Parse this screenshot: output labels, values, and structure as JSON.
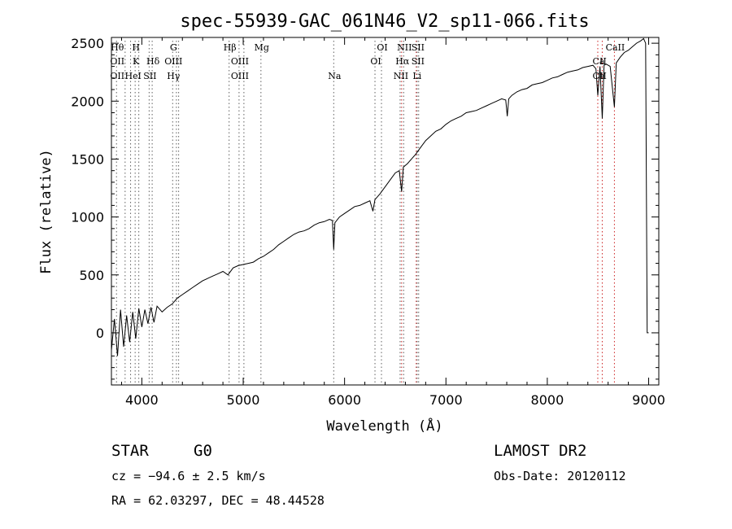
{
  "chart_data": {
    "type": "line",
    "title": "spec-55939-GAC_061N46_V2_sp11-066.fits",
    "xlabel": "Wavelength (Å)",
    "ylabel": "Flux (relative)",
    "xlim": [
      3700,
      9100
    ],
    "ylim": [
      -450,
      2550
    ],
    "xticks": [
      4000,
      5000,
      6000,
      7000,
      8000,
      9000
    ],
    "yticks": [
      0,
      500,
      1000,
      1500,
      2000,
      2500
    ],
    "series": [
      {
        "color": "#000000",
        "x": [
          3700,
          3730,
          3760,
          3790,
          3820,
          3850,
          3880,
          3910,
          3940,
          3970,
          4000,
          4030,
          4060,
          4090,
          4120,
          4150,
          4200,
          4250,
          4300,
          4350,
          4400,
          4450,
          4500,
          4550,
          4600,
          4650,
          4700,
          4750,
          4800,
          4850,
          4900,
          4950,
          5000,
          5050,
          5100,
          5150,
          5200,
          5250,
          5300,
          5350,
          5400,
          5450,
          5500,
          5550,
          5600,
          5650,
          5700,
          5750,
          5800,
          5850,
          5880,
          5893,
          5905,
          5950,
          6000,
          6050,
          6100,
          6150,
          6200,
          6250,
          6280,
          6300,
          6320,
          6350,
          6400,
          6450,
          6500,
          6540,
          6563,
          6580,
          6620,
          6660,
          6700,
          6750,
          6800,
          6850,
          6900,
          6950,
          7000,
          7050,
          7100,
          7150,
          7200,
          7250,
          7300,
          7350,
          7400,
          7450,
          7500,
          7550,
          7590,
          7605,
          7620,
          7650,
          7700,
          7750,
          7800,
          7850,
          7900,
          7950,
          8000,
          8050,
          8100,
          8150,
          8200,
          8250,
          8300,
          8350,
          8400,
          8450,
          8480,
          8498,
          8520,
          8542,
          8560,
          8580,
          8620,
          8662,
          8680,
          8720,
          8760,
          8800,
          8840,
          8880,
          8920,
          8950,
          8970,
          8985,
          9000
        ],
        "y": [
          -150,
          120,
          -200,
          200,
          -120,
          150,
          -80,
          180,
          -50,
          210,
          50,
          200,
          80,
          220,
          90,
          230,
          180,
          220,
          250,
          300,
          330,
          360,
          390,
          420,
          450,
          470,
          490,
          510,
          530,
          500,
          560,
          580,
          590,
          600,
          610,
          640,
          660,
          690,
          720,
          760,
          790,
          820,
          850,
          870,
          880,
          900,
          930,
          950,
          960,
          980,
          970,
          720,
          950,
          1000,
          1030,
          1060,
          1090,
          1100,
          1120,
          1140,
          1050,
          1150,
          1170,
          1200,
          1260,
          1320,
          1380,
          1400,
          1220,
          1430,
          1460,
          1500,
          1540,
          1600,
          1660,
          1700,
          1740,
          1760,
          1800,
          1830,
          1850,
          1870,
          1900,
          1910,
          1920,
          1940,
          1960,
          1980,
          2000,
          2020,
          2010,
          1870,
          2020,
          2050,
          2080,
          2100,
          2110,
          2140,
          2150,
          2160,
          2180,
          2200,
          2210,
          2230,
          2250,
          2260,
          2270,
          2290,
          2300,
          2310,
          2280,
          2050,
          2300,
          1850,
          2310,
          2320,
          2300,
          1950,
          2330,
          2380,
          2420,
          2440,
          2470,
          2500,
          2520,
          2540,
          2500,
          0,
          0
        ]
      }
    ],
    "line_markers": [
      {
        "w": 3750,
        "labels": [
          "Hθ",
          "OII",
          "OII"
        ],
        "color": "#606060"
      },
      {
        "w": 3835,
        "labels": [],
        "color": "#606060"
      },
      {
        "w": 3889,
        "labels": [
          "",
          "",
          "He"
        ],
        "color": "#606060"
      },
      {
        "w": 3934,
        "labels": [
          "H",
          "K",
          ""
        ],
        "color": "#606060"
      },
      {
        "w": 3970,
        "labels": [
          "",
          "",
          "I"
        ],
        "color": "#606060"
      },
      {
        "w": 4072,
        "labels": [
          "",
          "",
          "SII"
        ],
        "color": "#606060"
      },
      {
        "w": 4102,
        "labels": [
          "",
          "Hδ",
          ""
        ],
        "color": "#606060"
      },
      {
        "w": 4304,
        "labels": [
          "G",
          "OIII",
          "Hγ"
        ],
        "color": "#606060"
      },
      {
        "w": 4341,
        "labels": [],
        "color": "#606060"
      },
      {
        "w": 4363,
        "labels": [],
        "color": "#606060"
      },
      {
        "w": 4861,
        "labels": [
          "Hβ",
          "",
          ""
        ],
        "color": "#606060"
      },
      {
        "w": 4959,
        "labels": [
          "",
          "OIII",
          "OIII"
        ],
        "color": "#606060"
      },
      {
        "w": 5007,
        "labels": [],
        "color": "#606060"
      },
      {
        "w": 5175,
        "labels": [
          "Mg",
          "",
          ""
        ],
        "color": "#606060"
      },
      {
        "w": 5893,
        "labels": [
          "",
          "",
          "Na"
        ],
        "color": "#606060"
      },
      {
        "w": 6300,
        "labels": [
          "",
          "OI",
          ""
        ],
        "color": "#606060"
      },
      {
        "w": 6364,
        "labels": [
          "OI",
          "",
          ""
        ],
        "color": "#606060"
      },
      {
        "w": 6548,
        "labels": [
          "",
          "",
          "NII"
        ],
        "color": "#606060"
      },
      {
        "w": 6563,
        "labels": [
          "",
          "Hα",
          ""
        ],
        "color": "#cc2222"
      },
      {
        "w": 6583,
        "labels": [
          "NII",
          "",
          ""
        ],
        "color": "#606060"
      },
      {
        "w": 6707,
        "labels": [
          "",
          "",
          "Li"
        ],
        "color": "#cc2222"
      },
      {
        "w": 6716,
        "labels": [
          "SII",
          "SII",
          ""
        ],
        "color": "#606060"
      },
      {
        "w": 6731,
        "labels": [],
        "color": "#606060"
      },
      {
        "w": 8498,
        "labels": [
          "",
          "Ca",
          "Ca"
        ],
        "color": "#cc2222"
      },
      {
        "w": 8542,
        "labels": [
          "",
          "II",
          "II"
        ],
        "color": "#cc2222"
      },
      {
        "w": 8662,
        "labels": [
          "CaII",
          "",
          ""
        ],
        "color": "#cc2222"
      }
    ]
  },
  "info": {
    "class": "STAR",
    "subclass": "G0",
    "survey": "LAMOST DR2",
    "cz": "cz = −94.6 ± 2.5 km/s",
    "obsdate": "Obs-Date: 20120112",
    "coords": "RA =  62.03297, DEC =  48.44528"
  }
}
